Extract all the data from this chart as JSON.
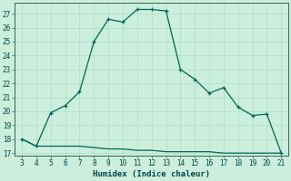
{
  "xlabel": "Humidex (Indice chaleur)",
  "bg_color": "#cceedd",
  "line_color": "#006655",
  "grid_color": "#aaddcc",
  "x_main": [
    3,
    4,
    5,
    6,
    7,
    8,
    9,
    10,
    11,
    12,
    13,
    14,
    15,
    16,
    17,
    18,
    19,
    20,
    21
  ],
  "y_main": [
    18.0,
    17.5,
    19.9,
    20.4,
    21.4,
    25.0,
    26.6,
    26.4,
    27.3,
    27.3,
    27.2,
    23.0,
    22.3,
    21.3,
    21.7,
    20.3,
    19.7,
    19.8,
    17.0
  ],
  "x_base": [
    3,
    4,
    5,
    6,
    7,
    8,
    9,
    10,
    11,
    12,
    13,
    14,
    15,
    16,
    17,
    18,
    19,
    20,
    21
  ],
  "y_base": [
    18.0,
    17.5,
    17.5,
    17.5,
    17.5,
    17.4,
    17.3,
    17.3,
    17.2,
    17.2,
    17.1,
    17.1,
    17.1,
    17.1,
    17.0,
    17.0,
    17.0,
    17.0,
    17.0
  ],
  "xlim": [
    2.5,
    21.5
  ],
  "ylim": [
    16.8,
    27.8
  ],
  "yticks": [
    17,
    18,
    19,
    20,
    21,
    22,
    23,
    24,
    25,
    26,
    27
  ],
  "xticks": [
    3,
    4,
    5,
    6,
    7,
    8,
    9,
    10,
    11,
    12,
    13,
    14,
    15,
    16,
    17,
    18,
    19,
    20,
    21
  ]
}
